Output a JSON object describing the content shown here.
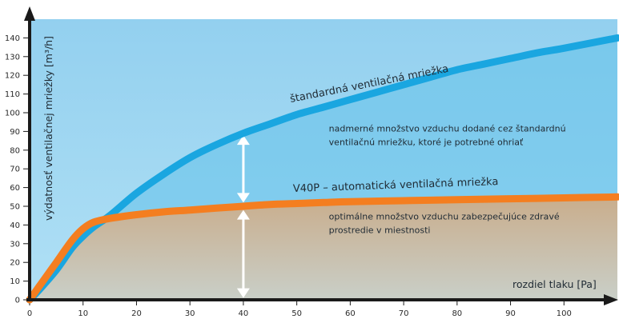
{
  "chart_data": {
    "type": "line",
    "ylabel": "výdatnosť ventilačnej mriežky [m³/h]",
    "xlabel": "rozdiel tlaku [Pa]",
    "xlim": [
      0,
      110
    ],
    "ylim": [
      0,
      150
    ],
    "x_ticks": [
      "0",
      "10",
      "20",
      "30",
      "40",
      "50",
      "60",
      "70",
      "80",
      "90",
      "100"
    ],
    "y_ticks": [
      "0",
      "10",
      "20",
      "30",
      "40",
      "50",
      "60",
      "70",
      "80",
      "90",
      "100",
      "110",
      "120",
      "130",
      "140"
    ],
    "grid": false,
    "background": {
      "top": "#93d0ef",
      "bottom": "#b0e0f5"
    },
    "series": [
      {
        "name": "štandardná ventilačná mriežka",
        "color": "#1aa6e0",
        "x": [
          0,
          2,
          5,
          8,
          10,
          12,
          15,
          20,
          25,
          30,
          35,
          40,
          45,
          50,
          55,
          60,
          65,
          70,
          75,
          80,
          85,
          90,
          95,
          100,
          110
        ],
        "y": [
          0,
          6,
          16,
          28,
          34,
          39,
          45,
          57,
          67,
          76,
          83,
          89,
          94,
          99,
          103,
          107,
          111,
          115,
          119,
          123,
          126,
          129,
          132,
          134.5,
          140
        ]
      },
      {
        "name": "V40P – automatická ventilačná mriežka",
        "color": "#f47e20",
        "x": [
          0,
          2,
          5,
          8,
          10,
          12,
          15,
          20,
          25,
          30,
          35,
          40,
          45,
          50,
          55,
          60,
          70,
          80,
          90,
          100,
          110
        ],
        "y": [
          0,
          8,
          20,
          32,
          38,
          41.5,
          43.5,
          45.5,
          47,
          48,
          49,
          50,
          51,
          51.5,
          52,
          52.5,
          53,
          53.5,
          54,
          54.5,
          55
        ]
      }
    ],
    "annotations": [
      {
        "text_lines": [
          "nadmerné množstvo vzduchu dodané cez štandardnú",
          "ventilačnú mriežku, ktoré je potrebné ohriať"
        ],
        "x": 56,
        "y": 90
      },
      {
        "text_lines": [
          "optimálne množstvo vzduchu zabezpečujúce zdravé",
          "prostredie v miestnosti"
        ],
        "x": 56,
        "y": 43
      }
    ],
    "arrows": [
      {
        "x": 40,
        "y_from": 52,
        "y_to": 88
      },
      {
        "x": 40,
        "y_from": 1,
        "y_to": 48
      }
    ],
    "cap_color": "#c8b39b"
  }
}
